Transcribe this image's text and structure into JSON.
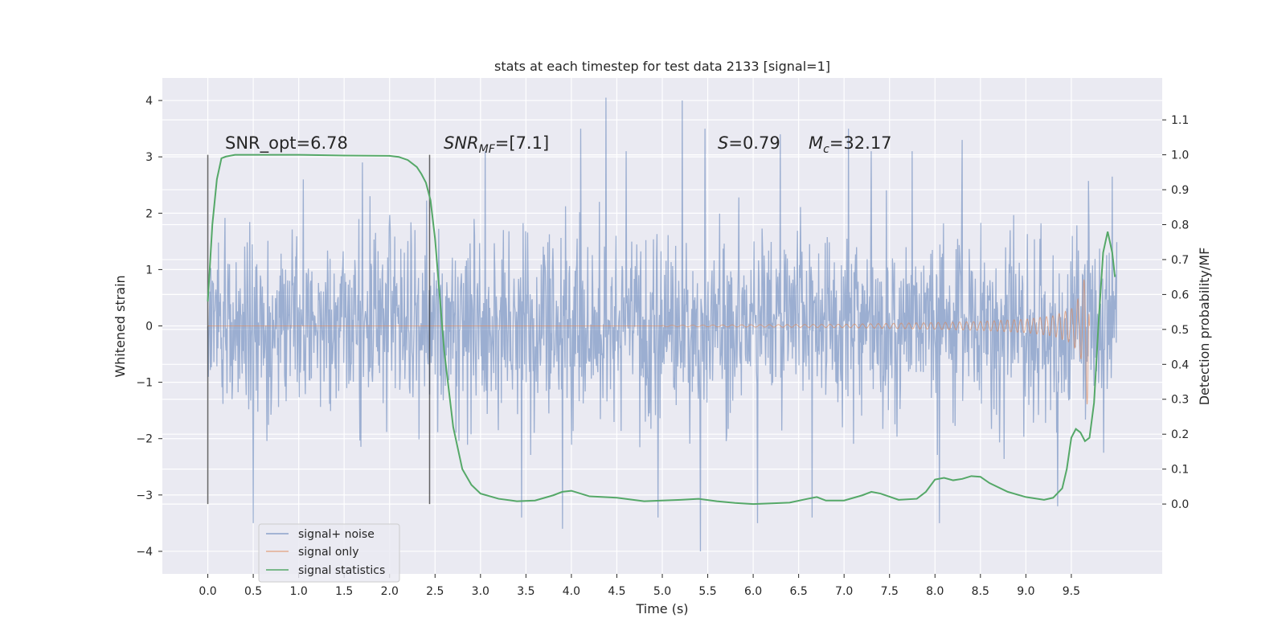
{
  "chart_data": {
    "type": "line",
    "title": "stats at each timestep for test data 2133 [signal=1]",
    "xlabel": "Time (s)",
    "ylabel_left": "Whitened strain",
    "ylabel_right": "Detection probability/MF",
    "xlim": [
      -0.5,
      10.5
    ],
    "ylim_left": [
      -4.4,
      4.4
    ],
    "ylim_right": [
      -0.2,
      1.22
    ],
    "x_ticks": [
      "0.0",
      "0.5",
      "1.0",
      "1.5",
      "2.0",
      "2.5",
      "3.0",
      "3.5",
      "4.0",
      "4.5",
      "5.0",
      "5.5",
      "6.0",
      "6.5",
      "7.0",
      "7.5",
      "8.0",
      "8.5",
      "9.0",
      "9.5"
    ],
    "x_tick_values": [
      0,
      0.5,
      1,
      1.5,
      2,
      2.5,
      3,
      3.5,
      4,
      4.5,
      5,
      5.5,
      6,
      6.5,
      7,
      7.5,
      8,
      8.5,
      9,
      9.5
    ],
    "y_left_ticks": [
      "−4",
      "−3",
      "−2",
      "−1",
      "0",
      "1",
      "2",
      "3",
      "4"
    ],
    "y_left_tick_values": [
      -4,
      -3,
      -2,
      -1,
      0,
      1,
      2,
      3,
      4
    ],
    "y_right_ticks": [
      "0.0",
      "0.1",
      "0.2",
      "0.3",
      "0.4",
      "0.5",
      "0.6",
      "0.7",
      "0.8",
      "0.9",
      "1.0",
      "1.1"
    ],
    "y_right_tick_values": [
      0,
      0.1,
      0.2,
      0.3,
      0.4,
      0.5,
      0.6,
      0.7,
      0.8,
      0.9,
      1.0,
      1.1
    ],
    "grid": true,
    "legend_position": "lower-left",
    "vertical_markers": [
      0.0,
      2.44
    ],
    "noise_time_range": [
      0.0,
      10.0
    ],
    "noise_peaks": [
      {
        "x": 0.5,
        "y": -3.5
      },
      {
        "x": 1.05,
        "y": 2.6
      },
      {
        "x": 1.7,
        "y": 2.9
      },
      {
        "x": 3.05,
        "y": 3.1
      },
      {
        "x": 3.45,
        "y": -3.4
      },
      {
        "x": 3.9,
        "y": -3.6
      },
      {
        "x": 4.1,
        "y": 3.5
      },
      {
        "x": 4.38,
        "y": 4.05
      },
      {
        "x": 4.6,
        "y": 3.1
      },
      {
        "x": 4.95,
        "y": -3.4
      },
      {
        "x": 5.22,
        "y": 4.0
      },
      {
        "x": 5.42,
        "y": -4.0
      },
      {
        "x": 5.47,
        "y": 3.5
      },
      {
        "x": 6.05,
        "y": -3.5
      },
      {
        "x": 6.3,
        "y": 3.4
      },
      {
        "x": 6.65,
        "y": -3.4
      },
      {
        "x": 7.05,
        "y": 3.5
      },
      {
        "x": 7.3,
        "y": 3.1
      },
      {
        "x": 7.75,
        "y": 3.1
      },
      {
        "x": 8.05,
        "y": -3.5
      },
      {
        "x": 8.3,
        "y": 3.3
      },
      {
        "x": 9.35,
        "y": -3.2
      },
      {
        "x": 9.95,
        "y": 2.65
      }
    ],
    "signal_envelope": {
      "x": [
        5.0,
        6.0,
        7.0,
        8.0,
        8.5,
        9.0,
        9.3,
        9.5,
        9.6,
        9.65,
        9.68,
        9.7
      ],
      "amplitude": [
        0.01,
        0.02,
        0.03,
        0.06,
        0.08,
        0.12,
        0.18,
        0.3,
        0.55,
        0.9,
        1.55,
        0.0
      ]
    },
    "series": [
      {
        "name": "signal+ noise",
        "color": "#4c72b0"
      },
      {
        "name": "signal only",
        "color": "#dd8452"
      },
      {
        "name": "signal statistics",
        "color": "#55a868",
        "x": [
          0.0,
          0.05,
          0.1,
          0.15,
          0.2,
          0.3,
          0.6,
          1.0,
          1.5,
          2.0,
          2.1,
          2.2,
          2.3,
          2.35,
          2.4,
          2.45,
          2.5,
          2.55,
          2.6,
          2.7,
          2.8,
          2.9,
          3.0,
          3.2,
          3.4,
          3.6,
          3.8,
          3.9,
          4.0,
          4.2,
          4.5,
          4.8,
          5.0,
          5.2,
          5.4,
          5.6,
          5.8,
          6.0,
          6.2,
          6.4,
          6.6,
          6.7,
          6.8,
          7.0,
          7.2,
          7.3,
          7.4,
          7.6,
          7.8,
          7.9,
          8.0,
          8.1,
          8.2,
          8.3,
          8.4,
          8.5,
          8.6,
          8.8,
          9.0,
          9.2,
          9.3,
          9.4,
          9.45,
          9.5,
          9.55,
          9.6,
          9.65,
          9.7,
          9.75,
          9.8,
          9.85,
          9.9,
          9.95,
          9.98
        ],
        "values": [
          0.58,
          0.8,
          0.93,
          0.99,
          0.995,
          1.0,
          1.0,
          1.0,
          0.998,
          0.997,
          0.994,
          0.985,
          0.965,
          0.945,
          0.92,
          0.87,
          0.76,
          0.6,
          0.44,
          0.22,
          0.1,
          0.055,
          0.03,
          0.015,
          0.008,
          0.01,
          0.025,
          0.035,
          0.038,
          0.022,
          0.018,
          0.008,
          0.01,
          0.012,
          0.015,
          0.008,
          0.003,
          0.0,
          0.002,
          0.004,
          0.015,
          0.02,
          0.01,
          0.01,
          0.025,
          0.035,
          0.03,
          0.012,
          0.015,
          0.035,
          0.07,
          0.075,
          0.068,
          0.072,
          0.08,
          0.078,
          0.06,
          0.035,
          0.02,
          0.012,
          0.018,
          0.045,
          0.1,
          0.19,
          0.215,
          0.205,
          0.18,
          0.19,
          0.29,
          0.52,
          0.72,
          0.78,
          0.72,
          0.65
        ]
      }
    ],
    "annotations": {
      "snr_opt": "SNR_opt=6.78",
      "snr_mf_base": "SNR",
      "snr_mf_sub": "MF",
      "snr_mf_value": "=[7.1]",
      "s_var": "S",
      "s_value": "=0.79",
      "mc_var": "M",
      "mc_sub": "c",
      "mc_value": "=32.17"
    }
  }
}
